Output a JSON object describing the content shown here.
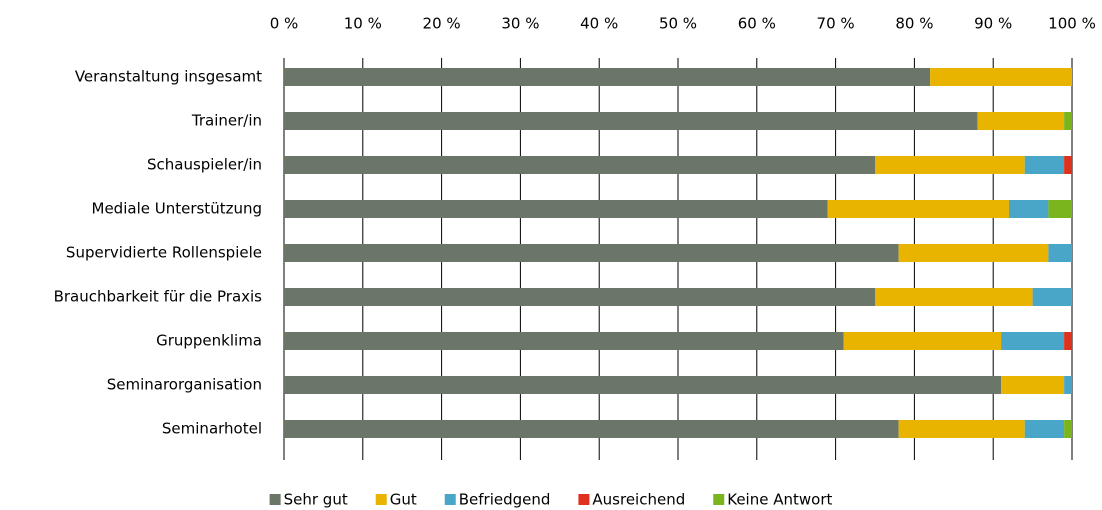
{
  "chart_data": {
    "type": "stacked_bar_horizontal",
    "categories": [
      "Veranstaltung insgesamt",
      "Trainer/in",
      "Schauspieler/in",
      "Mediale Unterstützung",
      "Supervidierte Rollenspiele",
      "Brauchbarkeit für die Praxis",
      "Gruppenklima",
      "Seminarorganisation",
      "Seminarhotel"
    ],
    "series": [
      {
        "name": "Sehr gut",
        "color": "#6b7568",
        "values": [
          82,
          88,
          75,
          69,
          78,
          75,
          71,
          91,
          78
        ]
      },
      {
        "name": "Gut",
        "color": "#e8b400",
        "values": [
          18,
          11,
          19,
          23,
          19,
          20,
          20,
          8,
          16
        ]
      },
      {
        "name": "Befriedgend",
        "color": "#4aa6c8",
        "values": [
          0,
          0,
          5,
          5,
          3,
          5,
          8,
          1,
          5
        ]
      },
      {
        "name": "Ausreichend",
        "color": "#e0301e",
        "values": [
          0,
          0,
          1,
          0,
          0,
          0,
          1,
          0,
          0
        ]
      },
      {
        "name": "Keine Antwort",
        "color": "#7ab51d",
        "values": [
          0,
          1,
          0,
          3,
          0,
          0,
          0,
          0,
          1
        ]
      }
    ],
    "xlim": [
      0,
      100
    ],
    "xticks": [
      {
        "value": 0,
        "label": "0 %"
      },
      {
        "value": 10,
        "label": "10 %"
      },
      {
        "value": 20,
        "label": "20 %"
      },
      {
        "value": 30,
        "label": "30 %"
      },
      {
        "value": 40,
        "label": "40 %"
      },
      {
        "value": 50,
        "label": "50 %"
      },
      {
        "value": 60,
        "label": "60 %"
      },
      {
        "value": 70,
        "label": "70 %"
      },
      {
        "value": 80,
        "label": "80 %"
      },
      {
        "value": 90,
        "label": "90 %"
      },
      {
        "value": 100,
        "label": "100 %"
      }
    ],
    "grid": true,
    "legend": "bottom"
  }
}
